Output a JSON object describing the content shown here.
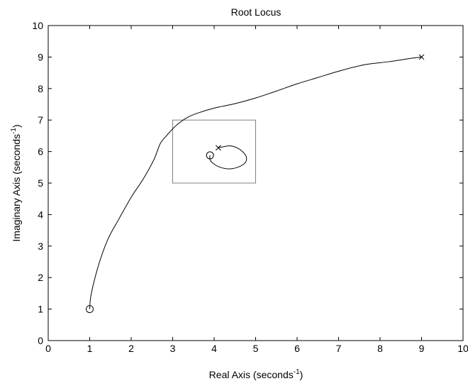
{
  "chart_data": {
    "type": "line",
    "title": "Root Locus",
    "xlabel": {
      "main": "Real Axis (seconds",
      "sup": "-1",
      "end": ")"
    },
    "ylabel": {
      "main": "Imaginary Axis (seconds",
      "sup": "-1",
      "end": ")"
    },
    "xlim": [
      0,
      10
    ],
    "ylim": [
      0,
      10
    ],
    "xticks": [
      "0",
      "1",
      "2",
      "3",
      "4",
      "5",
      "6",
      "7",
      "8",
      "9",
      "10"
    ],
    "yticks": [
      "0",
      "1",
      "2",
      "3",
      "4",
      "5",
      "6",
      "7",
      "8",
      "9",
      "10"
    ],
    "grid": false,
    "colors": {
      "plot_background": "#ffffff",
      "axes": "#000000",
      "locus": "#000000",
      "rectangle": "#808080"
    },
    "series": [
      {
        "kind": "locus-branch-outer",
        "x": [
          1.0,
          1.02,
          1.1,
          1.25,
          1.45,
          1.7,
          2.0,
          2.3,
          2.55,
          2.7,
          2.85,
          3.0,
          3.15,
          3.35,
          3.6,
          4.0,
          4.5,
          5.0,
          5.5,
          6.0,
          6.5,
          7.0,
          7.6,
          8.2,
          8.7,
          9.0
        ],
        "y": [
          1.0,
          1.35,
          1.85,
          2.55,
          3.25,
          3.85,
          4.55,
          5.15,
          5.75,
          6.25,
          6.5,
          6.72,
          6.9,
          7.08,
          7.22,
          7.38,
          7.52,
          7.7,
          7.92,
          8.15,
          8.35,
          8.55,
          8.75,
          8.85,
          8.95,
          9.0
        ]
      },
      {
        "kind": "locus-branch-inner",
        "x": [
          4.1,
          4.25,
          4.4,
          4.58,
          4.72,
          4.78,
          4.75,
          4.6,
          4.38,
          4.15,
          3.98,
          3.9,
          3.9
        ],
        "y": [
          6.12,
          6.16,
          6.18,
          6.1,
          5.95,
          5.8,
          5.65,
          5.52,
          5.45,
          5.5,
          5.62,
          5.75,
          5.88
        ]
      }
    ],
    "poles": [
      {
        "x": 9.0,
        "y": 9.0
      },
      {
        "x": 4.1,
        "y": 6.12
      }
    ],
    "zeros": [
      {
        "x": 1.0,
        "y": 1.0
      },
      {
        "x": 3.9,
        "y": 5.88
      }
    ],
    "rectangle": {
      "x0": 3,
      "x1": 5,
      "y0": 5,
      "y1": 7
    }
  }
}
